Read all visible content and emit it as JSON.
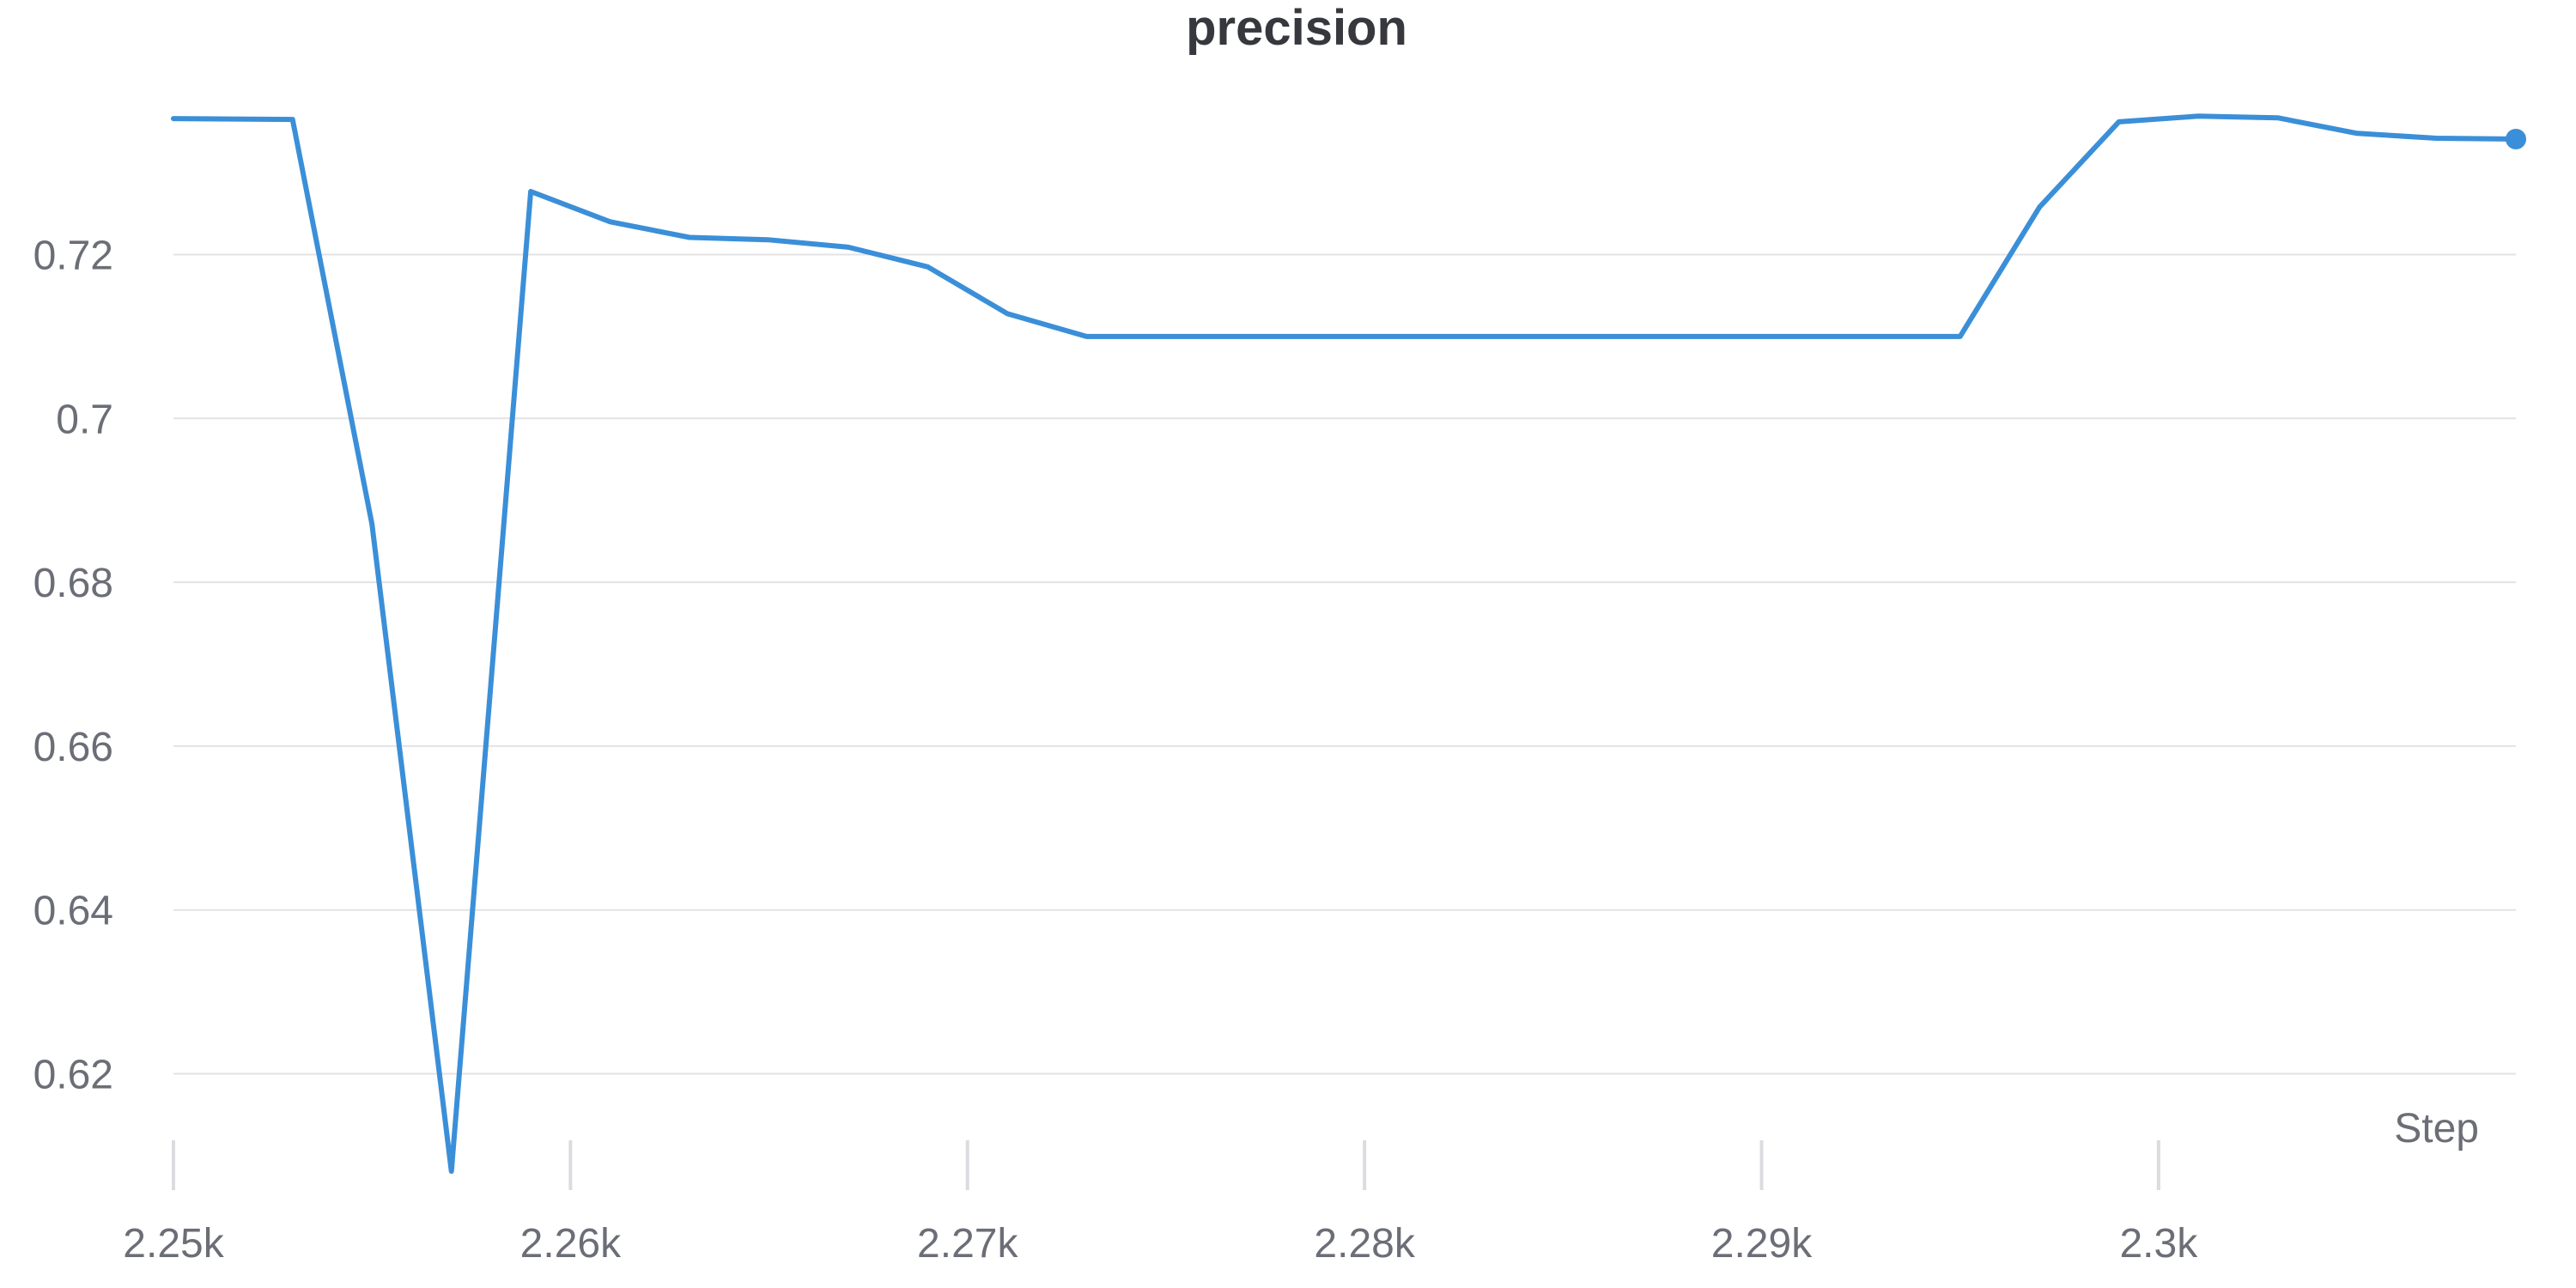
{
  "chart_data": {
    "type": "line",
    "title": "precision",
    "xlabel": "Step",
    "ylabel": "",
    "xlim": [
      2250,
      2309
    ],
    "ylim": [
      0.608,
      0.7385
    ],
    "x_ticks": [
      2250,
      2260,
      2270,
      2280,
      2290,
      2300
    ],
    "x_tick_labels": [
      "2.25k",
      "2.26k",
      "2.27k",
      "2.28k",
      "2.29k",
      "2.3k"
    ],
    "y_ticks": [
      0.62,
      0.64,
      0.66,
      0.68,
      0.7,
      0.72
    ],
    "y_tick_labels": [
      "0.62",
      "0.64",
      "0.66",
      "0.68",
      "0.7",
      "0.72"
    ],
    "grid": true,
    "legend": "none",
    "series": [
      {
        "color": "#3b8fd8",
        "x": [
          2250,
          2253,
          2255,
          2257,
          2259,
          2261,
          2263,
          2265,
          2267,
          2269,
          2271,
          2273,
          2275,
          2277,
          2279,
          2281,
          2283,
          2285,
          2287,
          2289,
          2291,
          2293,
          2295,
          2297,
          2299,
          2301,
          2303,
          2305,
          2307,
          2309
        ],
        "y": [
          0.7366,
          0.7365,
          0.6871,
          0.6081,
          0.7277,
          0.724,
          0.7221,
          0.7218,
          0.7209,
          0.7185,
          0.7128,
          0.71,
          0.71,
          0.71,
          0.71,
          0.71,
          0.71,
          0.71,
          0.71,
          0.71,
          0.71,
          0.71,
          0.71,
          0.7258,
          0.7362,
          0.7369,
          0.7367,
          0.7348,
          0.7342,
          0.7341
        ]
      }
    ]
  }
}
